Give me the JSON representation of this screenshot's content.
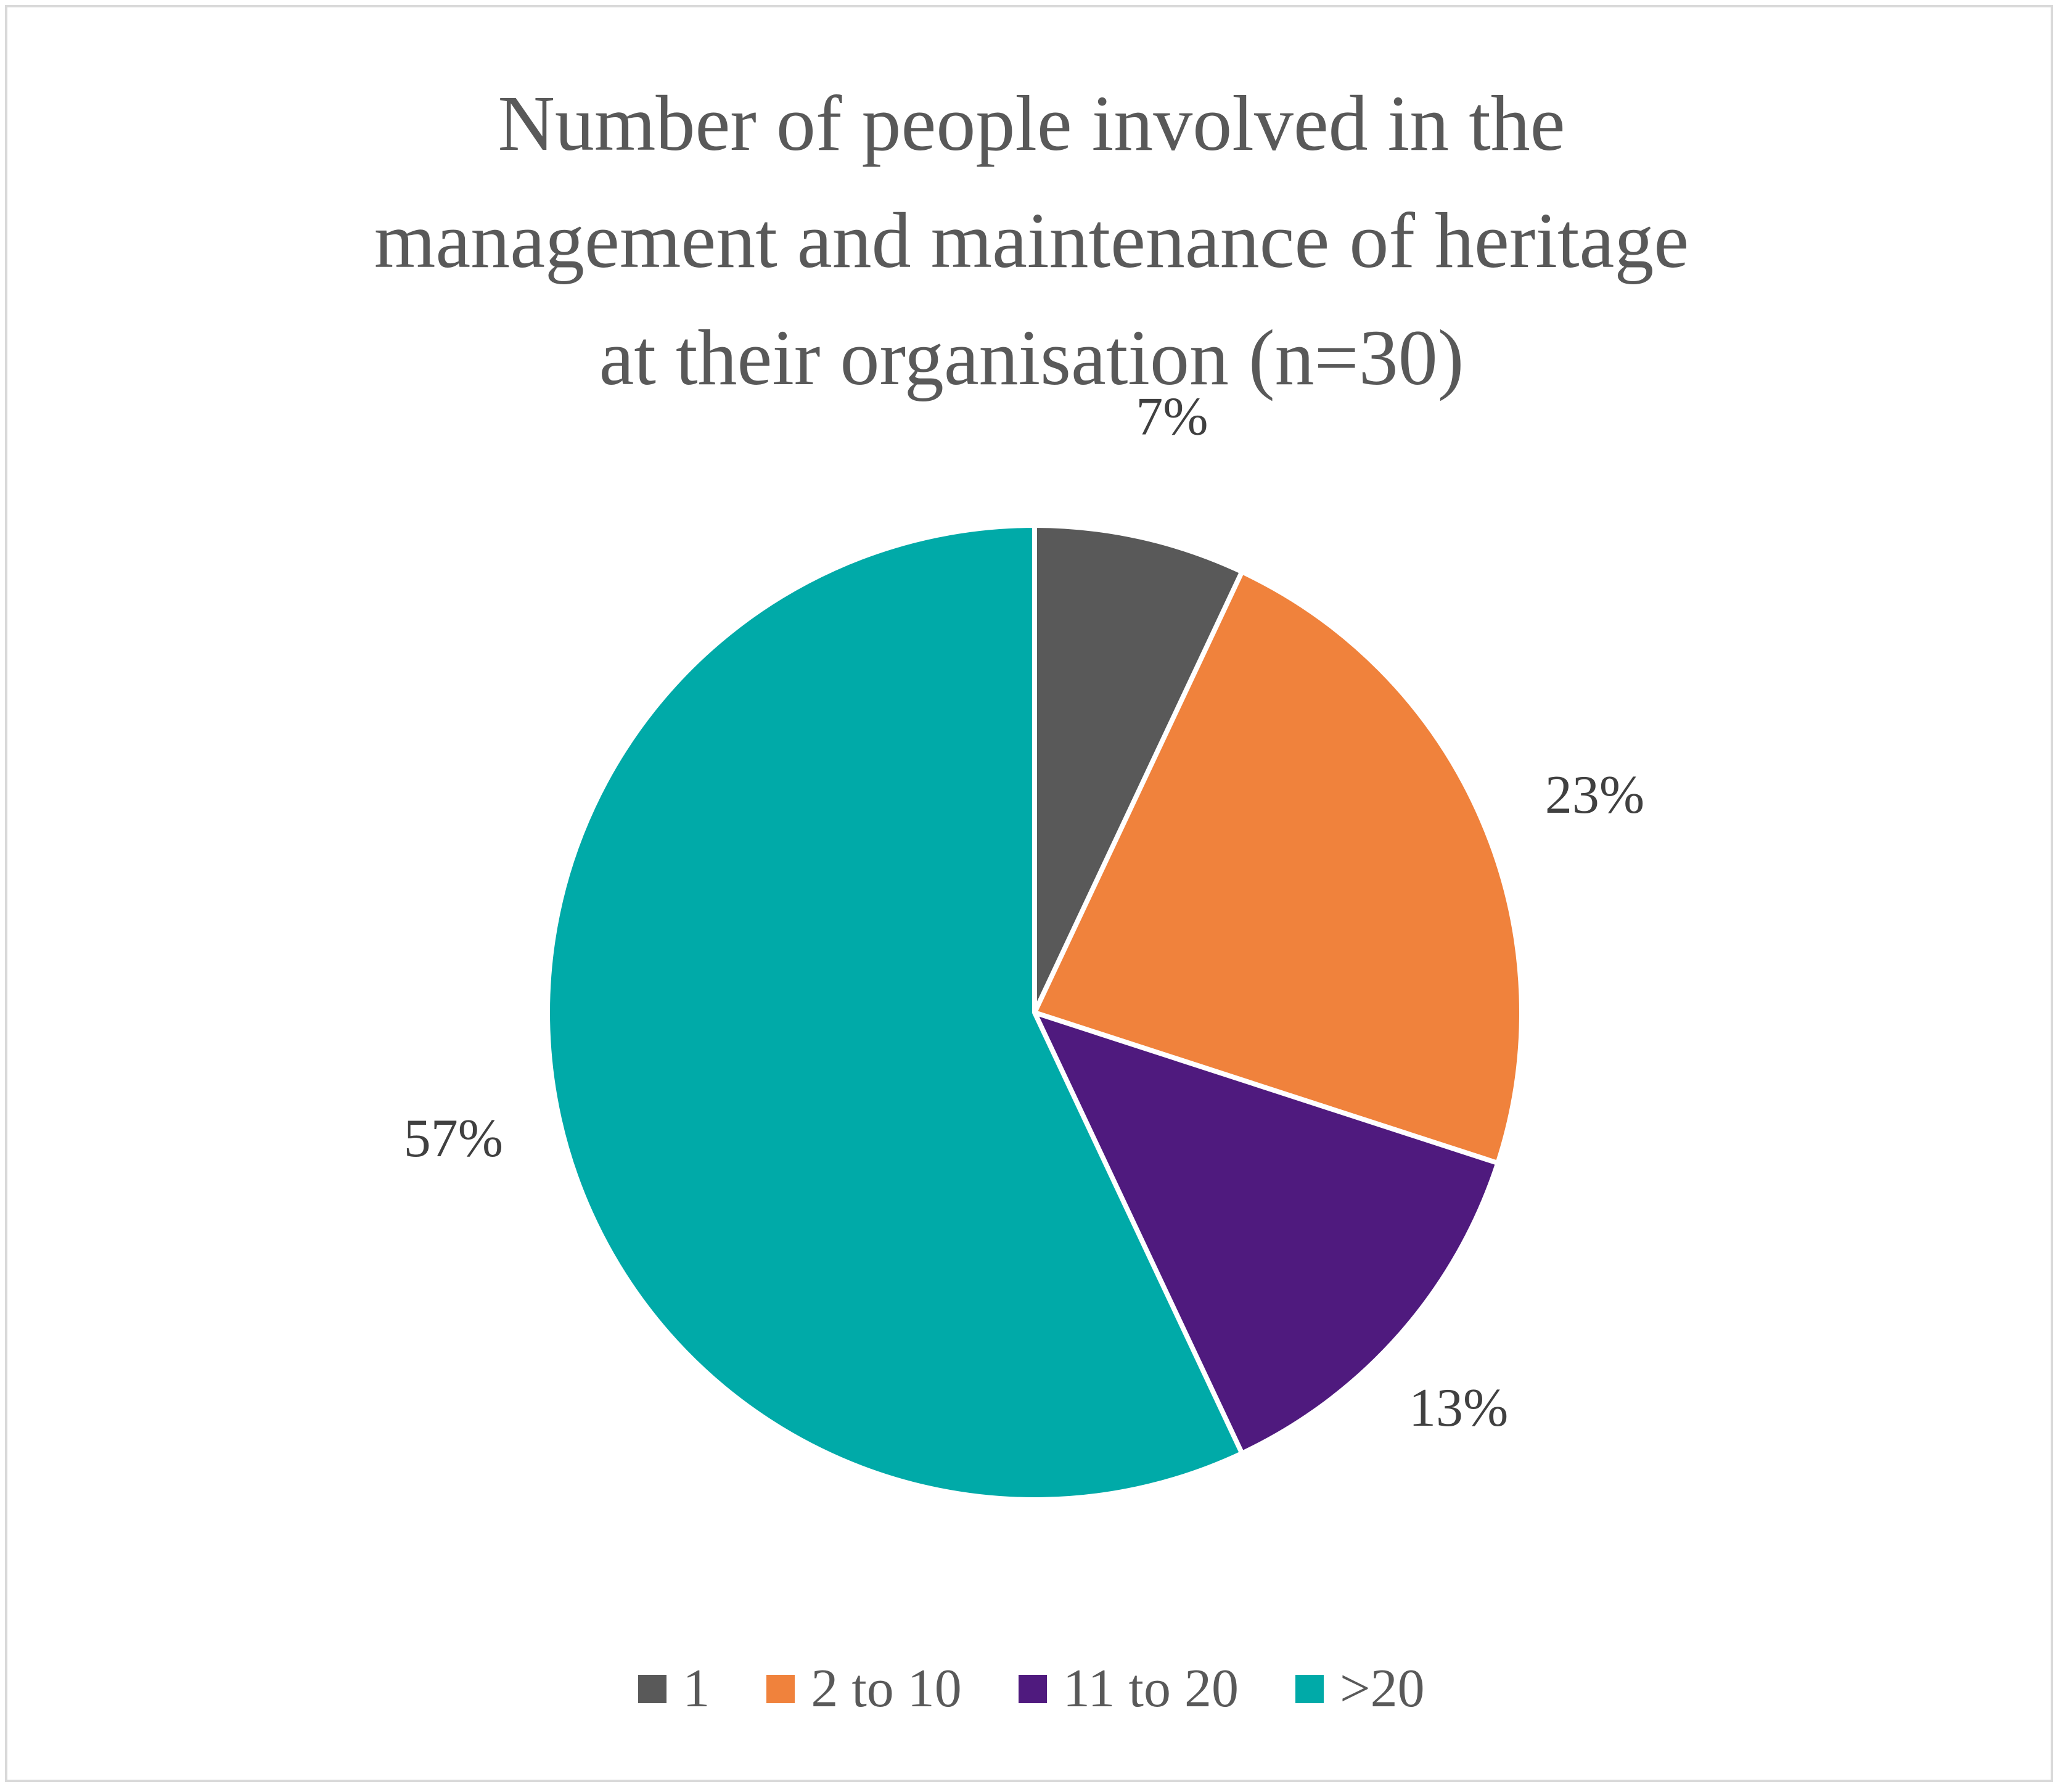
{
  "chart_data": {
    "type": "pie",
    "title": "Number of people involved in the\nmanagement and maintenance of heritage\nat their organisation (n=30)",
    "slices": [
      {
        "label": "1",
        "value": 7,
        "display": "7%",
        "color": "#595959"
      },
      {
        "label": "2 to 10",
        "value": 23,
        "display": "23%",
        "color": "#f0823c"
      },
      {
        "label": "11 to 20",
        "value": 13,
        "display": "13%",
        "color": "#4f1a7e"
      },
      {
        "label": ">20",
        "value": 57,
        "display": "57%",
        "color": "#00aaa8"
      }
    ],
    "start_angle": "12 o'clock",
    "direction": "clockwise",
    "legend_position": "bottom"
  }
}
